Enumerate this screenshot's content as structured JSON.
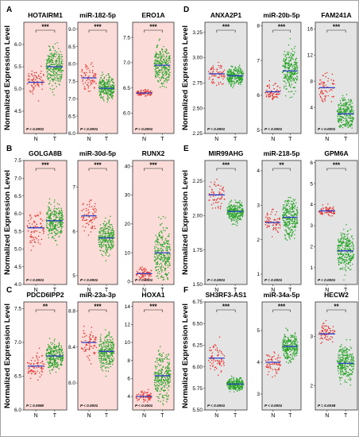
{
  "figure": {
    "panel_labels": [
      "A",
      "B",
      "C",
      "D",
      "E",
      "F"
    ],
    "ylabel": "Normalized Expression Level",
    "colors": {
      "normal": "#e8302a",
      "tumor": "#2aa52a",
      "median": "#2c3ec8",
      "bg_left": "#fbdcd9",
      "bg_right": "#e4e4e4"
    }
  },
  "chart_data": [
    {
      "type": "scatter",
      "title": "HOTAIRM1",
      "categories": [
        "N",
        "T"
      ],
      "ylim": [
        4.0,
        6.5
      ],
      "yticks": [
        "4.5",
        "5.0",
        "5.5",
        "6.0"
      ],
      "median": [
        5.15,
        5.5
      ],
      "spread": [
        [
          4.6,
          5.9
        ],
        [
          4.5,
          6.3
        ]
      ],
      "sig": "***",
      "pval": "P < 0.0001"
    },
    {
      "type": "scatter",
      "title": "miR-182-5p",
      "categories": [
        "N",
        "T"
      ],
      "ylim": [
        6.0,
        9.2
      ],
      "yticks": [
        "6.0",
        "6.5",
        "7.0",
        "7.5",
        "8.0",
        "8.5",
        "9.0"
      ],
      "median": [
        7.6,
        7.3
      ],
      "spread": [
        [
          6.6,
          8.3
        ],
        [
          6.7,
          8.1
        ]
      ],
      "sig": "***",
      "pval": "P < 0.0001"
    },
    {
      "type": "scatter",
      "title": "ERO1A",
      "categories": [
        "N",
        "T"
      ],
      "ylim": [
        5.6,
        7.8
      ],
      "yticks": [
        "6.0",
        "6.5",
        "7.0",
        "7.5"
      ],
      "median": [
        6.4,
        6.95
      ],
      "spread": [
        [
          6.3,
          6.55
        ],
        [
          6.2,
          7.65
        ]
      ],
      "sig": "***",
      "pval": "P < 0.0001"
    },
    {
      "type": "scatter",
      "title": "ANXA2P1",
      "categories": [
        "N",
        "T"
      ],
      "ylim": [
        2.25,
        3.35
      ],
      "yticks": [
        "2.25",
        "2.50",
        "2.75",
        "3.00",
        "3.25"
      ],
      "median": [
        2.84,
        2.82
      ],
      "spread": [
        [
          2.55,
          3.05
        ],
        [
          2.6,
          2.95
        ]
      ],
      "sig": "***",
      "pval": "P < 0.0001"
    },
    {
      "type": "scatter",
      "title": "miR-20b-5p",
      "categories": [
        "N",
        "T"
      ],
      "ylim": [
        4.9,
        8.1
      ],
      "yticks": [
        "5",
        "6",
        "7",
        "8"
      ],
      "median": [
        6.1,
        6.7
      ],
      "spread": [
        [
          5.7,
          6.6
        ],
        [
          5.3,
          7.8
        ]
      ],
      "sig": "***",
      "pval": "P < 0.0001"
    },
    {
      "type": "scatter",
      "title": "FAM241A",
      "categories": [
        "N",
        "T"
      ],
      "ylim": [
        0,
        17
      ],
      "yticks": [
        "4",
        "8",
        "12",
        "16"
      ],
      "median": [
        7.0,
        3.0
      ],
      "spread": [
        [
          3.8,
          13.0
        ],
        [
          0.8,
          11.5
        ]
      ],
      "sig": "***",
      "pval": "P < 0.0001"
    },
    {
      "type": "scatter",
      "title": "GOLGA8B",
      "categories": [
        "N",
        "T"
      ],
      "ylim": [
        4.0,
        7.5
      ],
      "yticks": [
        "4.0",
        "4.5",
        "5.0",
        "5.5",
        "6.0",
        "6.5",
        "7.0",
        "7.5"
      ],
      "median": [
        5.6,
        5.8
      ],
      "spread": [
        [
          4.4,
          6.5
        ],
        [
          4.9,
          6.9
        ]
      ],
      "sig": "***",
      "pval": "P < 0.0001"
    },
    {
      "type": "scatter",
      "title": "miR-30d-5p",
      "categories": [
        "N",
        "T"
      ],
      "ylim": [
        4.8,
        7.6
      ],
      "yticks": [
        "5",
        "6",
        "7"
      ],
      "median": [
        6.35,
        5.85
      ],
      "spread": [
        [
          5.6,
          7.1
        ],
        [
          5.2,
          6.6
        ]
      ],
      "sig": "***",
      "pval": "P < 0.0001"
    },
    {
      "type": "scatter",
      "title": "RUNX2",
      "categories": [
        "N",
        "T"
      ],
      "ylim": [
        -1,
        42
      ],
      "yticks": [
        "0",
        "10",
        "20",
        "30",
        "40"
      ],
      "median": [
        2.8,
        10.0
      ],
      "spread": [
        [
          0.5,
          8.0
        ],
        [
          0.5,
          38.0
        ]
      ],
      "sig": "***",
      "pval": "P < 0.0001"
    },
    {
      "type": "scatter",
      "title": "MIR99AHG",
      "categories": [
        "N",
        "T"
      ],
      "ylim": [
        1.5,
        2.4
      ],
      "yticks": [
        "1.50",
        "1.75",
        "2.00",
        "2.25"
      ],
      "median": [
        2.15,
        2.03
      ],
      "spread": [
        [
          1.85,
          2.3
        ],
        [
          1.85,
          2.15
        ]
      ],
      "sig": "***",
      "pval": "P < 0.0001"
    },
    {
      "type": "scatter",
      "title": "miR-218-5p",
      "categories": [
        "N",
        "T"
      ],
      "ylim": [
        0.7,
        4.3
      ],
      "yticks": [
        "1",
        "2",
        "3",
        "4"
      ],
      "median": [
        2.5,
        2.65
      ],
      "spread": [
        [
          1.8,
          3.3
        ],
        [
          1.5,
          3.9
        ]
      ],
      "sig": "**",
      "pval": "P = 0.0001"
    },
    {
      "type": "scatter",
      "title": "GPM6A",
      "categories": [
        "N",
        "T"
      ],
      "ylim": [
        0.2,
        6.1
      ],
      "yticks": [
        "1",
        "2",
        "3",
        "4",
        "5",
        "6"
      ],
      "median": [
        3.7,
        1.8
      ],
      "spread": [
        [
          3.2,
          4.1
        ],
        [
          0.4,
          4.0
        ]
      ],
      "sig": "***",
      "pval": "P < 0.0001"
    },
    {
      "type": "scatter",
      "title": "PDCD6IPP2",
      "categories": [
        "N",
        "T"
      ],
      "ylim": [
        6.0,
        7.6
      ],
      "yticks": [
        "6.0",
        "6.5",
        "7.0",
        "7.5"
      ],
      "median": [
        6.65,
        6.8
      ],
      "spread": [
        [
          6.3,
          7.1
        ],
        [
          6.35,
          7.2
        ]
      ],
      "sig": "**",
      "pval": "P = 0.0080"
    },
    {
      "type": "scatter",
      "title": "miR-23a-3p",
      "categories": [
        "N",
        "T"
      ],
      "ylim": [
        7.7,
        8.9
      ],
      "yticks": [
        "8.0",
        "8.4",
        "8.8"
      ],
      "median": [
        8.45,
        8.35
      ],
      "spread": [
        [
          8.0,
          8.7
        ],
        [
          7.9,
          8.65
        ]
      ],
      "sig": "***",
      "pval": "P < 0.0001"
    },
    {
      "type": "scatter",
      "title": "HOXA1",
      "categories": [
        "N",
        "T"
      ],
      "ylim": [
        2.5,
        14.5
      ],
      "yticks": [
        "4",
        "6",
        "8",
        "10",
        "12",
        "14"
      ],
      "median": [
        4.0,
        6.3
      ],
      "spread": [
        [
          3.1,
          5.3
        ],
        [
          3.0,
          13.5
        ]
      ],
      "sig": "***",
      "pval": "P < 0.0001"
    },
    {
      "type": "scatter",
      "title": "SH3RF3-AS1",
      "categories": [
        "N",
        "T"
      ],
      "ylim": [
        5.5,
        6.75
      ],
      "yticks": [
        "5.50",
        "5.75",
        "6.00",
        "6.25",
        "6.50",
        "6.75"
      ],
      "median": [
        6.1,
        5.8
      ],
      "spread": [
        [
          5.6,
          6.35
        ],
        [
          5.65,
          5.95
        ]
      ],
      "sig": "***",
      "pval": "P < 0.0001"
    },
    {
      "type": "scatter",
      "title": "miR-34a-5p",
      "categories": [
        "N",
        "T"
      ],
      "ylim": [
        2.5,
        5.9
      ],
      "yticks": [
        "3",
        "4",
        "5"
      ],
      "median": [
        4.0,
        4.5
      ],
      "spread": [
        [
          3.3,
          4.9
        ],
        [
          3.6,
          5.3
        ]
      ],
      "sig": "***",
      "pval": "P < 0.0001"
    },
    {
      "type": "scatter",
      "title": "HECW2",
      "categories": [
        "N",
        "T"
      ],
      "ylim": [
        1.5,
        3.7
      ],
      "yticks": [
        "2",
        "3"
      ],
      "median": [
        3.05,
        2.45
      ],
      "spread": [
        [
          2.7,
          3.6
        ],
        [
          1.75,
          3.15
        ]
      ],
      "sig": "**",
      "pval": "P = 0.0039"
    }
  ]
}
